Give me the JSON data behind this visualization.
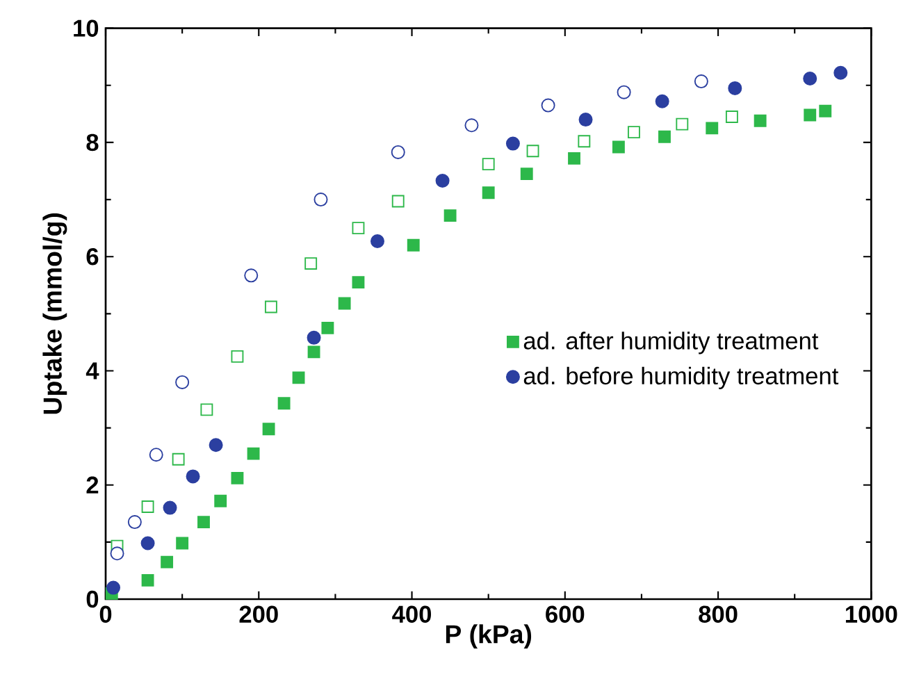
{
  "chart_data": {
    "type": "scatter",
    "xlabel": "P (kPa)",
    "ylabel": "Uptake (mmol/g)",
    "xlim": [
      0,
      1000
    ],
    "ylim": [
      0,
      10
    ],
    "xticks": [
      0,
      200,
      400,
      600,
      800,
      1000
    ],
    "yticks": [
      0,
      2,
      4,
      6,
      8,
      10
    ],
    "grid": false,
    "legend": "right",
    "series": [
      {
        "name": "ad. after humidity treatment",
        "color": "#2db84a",
        "marker": "square",
        "x": [
          8,
          55,
          80,
          100,
          128,
          150,
          172,
          193,
          213,
          233,
          252,
          272,
          290,
          312,
          330,
          402,
          450,
          500,
          550,
          612,
          670,
          730,
          792,
          855,
          920,
          940
        ],
        "values": [
          0.1,
          0.33,
          0.65,
          0.98,
          1.35,
          1.72,
          2.12,
          2.55,
          2.98,
          3.43,
          3.88,
          4.33,
          4.75,
          5.18,
          5.55,
          6.2,
          6.72,
          7.12,
          7.45,
          7.72,
          7.92,
          8.1,
          8.25,
          8.38,
          8.48,
          8.55
        ]
      },
      {
        "name": "ad. before humidity treatment",
        "color": "#2b3fa0",
        "marker": "circle",
        "x": [
          10,
          55,
          84,
          114,
          144,
          272,
          355,
          440,
          532,
          627,
          727,
          822,
          920,
          960
        ],
        "values": [
          0.2,
          0.98,
          1.6,
          2.15,
          2.7,
          4.58,
          6.27,
          7.33,
          7.98,
          8.4,
          8.72,
          8.95,
          9.12,
          9.22
        ]
      },
      {
        "color": "#2db84a",
        "marker": "square",
        "x": [
          15,
          55,
          95,
          132,
          172,
          216,
          268,
          330,
          382,
          500,
          558,
          625,
          690,
          753,
          818
        ],
        "values": [
          0.93,
          1.62,
          2.45,
          3.32,
          4.25,
          5.12,
          5.88,
          6.5,
          6.97,
          7.62,
          7.85,
          8.02,
          8.18,
          8.32,
          8.45
        ]
      },
      {
        "color": "#2b3fa0",
        "marker": "circle",
        "x": [
          15,
          38,
          66,
          100,
          190,
          281,
          382,
          478,
          578,
          677,
          778
        ],
        "values": [
          0.8,
          1.35,
          2.53,
          3.8,
          5.67,
          7.0,
          7.83,
          8.3,
          8.65,
          8.88,
          9.07
        ]
      }
    ]
  }
}
